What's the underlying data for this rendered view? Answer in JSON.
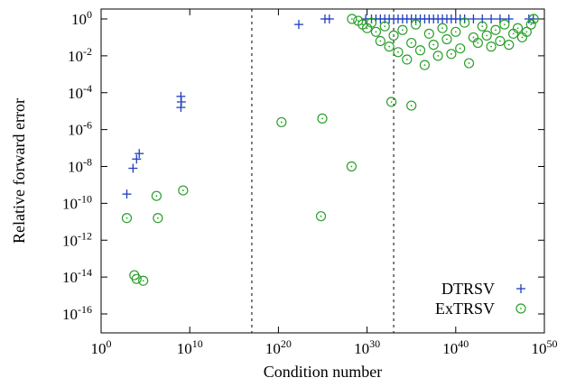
{
  "chart_data": {
    "type": "scatter",
    "xlabel": "Condition number",
    "ylabel": "Relative forward error",
    "xscale": "log",
    "yscale": "log",
    "xlim_exp": [
      0,
      50
    ],
    "ylim_exp": [
      -17,
      0.5
    ],
    "x_ticks": [
      {
        "exp": 0,
        "label": "10",
        "sup": "0"
      },
      {
        "exp": 10,
        "label": "10",
        "sup": "10"
      },
      {
        "exp": 20,
        "label": "10",
        "sup": "20"
      },
      {
        "exp": 30,
        "label": "10",
        "sup": "30"
      },
      {
        "exp": 40,
        "label": "10",
        "sup": "40"
      },
      {
        "exp": 50,
        "label": "10",
        "sup": "50"
      }
    ],
    "y_ticks": [
      {
        "exp": 0,
        "label": "10",
        "sup": "0"
      },
      {
        "exp": -2,
        "label": "10",
        "sup": "-2"
      },
      {
        "exp": -4,
        "label": "10",
        "sup": "-4"
      },
      {
        "exp": -6,
        "label": "10",
        "sup": "-6"
      },
      {
        "exp": -8,
        "label": "10",
        "sup": "-8"
      },
      {
        "exp": -10,
        "label": "10",
        "sup": "-10"
      },
      {
        "exp": -12,
        "label": "10",
        "sup": "-12"
      },
      {
        "exp": -14,
        "label": "10",
        "sup": "-14"
      },
      {
        "exp": -16,
        "label": "10",
        "sup": "-16"
      }
    ],
    "reference_lines_x_exp": [
      17,
      33
    ],
    "legend_position": "bottom-right",
    "series": [
      {
        "name": "DTRSV",
        "marker": "plus",
        "color": "#1f3fbf",
        "points_log10": [
          [
            5.8,
            -9.5
          ],
          [
            7.2,
            -8.1
          ],
          [
            8.0,
            -7.6
          ],
          [
            8.6,
            -7.3
          ],
          [
            18.0,
            -4.2
          ],
          [
            18.1,
            -4.5
          ],
          [
            18.0,
            -4.8
          ],
          [
            44.6,
            -0.3
          ],
          [
            50.5,
            0.0
          ],
          [
            51.5,
            0.0
          ],
          [
            59.7,
            0.0
          ],
          [
            61.0,
            0.0
          ],
          [
            62.0,
            0.0
          ],
          [
            63.0,
            0.0
          ],
          [
            64.0,
            0.0
          ],
          [
            65.0,
            0.0
          ],
          [
            66.0,
            0.0
          ],
          [
            67.0,
            0.0
          ],
          [
            68.0,
            0.0
          ],
          [
            69.0,
            0.0
          ],
          [
            70.0,
            0.0
          ],
          [
            71.0,
            0.0
          ],
          [
            72.0,
            0.0
          ],
          [
            73.0,
            0.0
          ],
          [
            74.0,
            0.0
          ],
          [
            75.0,
            0.0
          ],
          [
            76.0,
            0.0
          ],
          [
            77.0,
            0.0
          ],
          [
            78.0,
            0.0
          ],
          [
            79.0,
            0.0
          ],
          [
            80.0,
            0.0
          ],
          [
            81.0,
            0.0
          ],
          [
            82.0,
            0.0
          ],
          [
            84.0,
            0.0
          ],
          [
            86.0,
            0.0
          ],
          [
            88.0,
            0.0
          ],
          [
            90.0,
            0.0
          ],
          [
            92.0,
            0.0
          ],
          [
            96.5,
            0.0
          ],
          [
            97.5,
            0.0
          ]
        ]
      },
      {
        "name": "ExTRSV",
        "marker": "circle-dot",
        "color": "#2aa02a",
        "points_log10": [
          [
            5.8,
            -10.8
          ],
          [
            7.5,
            -13.9
          ],
          [
            8.0,
            -14.1
          ],
          [
            9.5,
            -14.2
          ],
          [
            12.5,
            -9.6
          ],
          [
            12.8,
            -10.8
          ],
          [
            18.5,
            -9.3
          ],
          [
            40.7,
            -5.6
          ],
          [
            49.6,
            -10.7
          ],
          [
            49.9,
            -5.4
          ],
          [
            56.5,
            -8.0
          ],
          [
            70.0,
            -4.7
          ],
          [
            65.5,
            -4.5
          ],
          [
            56.6,
            0.0
          ],
          [
            58.0,
            -0.1
          ],
          [
            59.0,
            -0.3
          ],
          [
            60.0,
            -0.5
          ],
          [
            61.0,
            -0.2
          ],
          [
            62.0,
            -0.7
          ],
          [
            63.0,
            -1.2
          ],
          [
            64.0,
            -0.4
          ],
          [
            65.0,
            -1.5
          ],
          [
            66.0,
            -0.9
          ],
          [
            67.0,
            -1.8
          ],
          [
            68.0,
            -0.6
          ],
          [
            69.0,
            -2.2
          ],
          [
            70.0,
            -1.3
          ],
          [
            71.0,
            -0.3
          ],
          [
            72.0,
            -1.7
          ],
          [
            73.0,
            -2.5
          ],
          [
            74.0,
            -0.8
          ],
          [
            75.0,
            -1.4
          ],
          [
            76.0,
            -2.0
          ],
          [
            77.0,
            -0.5
          ],
          [
            78.0,
            -1.1
          ],
          [
            79.0,
            -1.9
          ],
          [
            80.0,
            -0.7
          ],
          [
            81.0,
            -1.6
          ],
          [
            82.0,
            -0.2
          ],
          [
            83.0,
            -2.4
          ],
          [
            84.0,
            -1.0
          ],
          [
            85.0,
            -1.3
          ],
          [
            86.0,
            -0.4
          ],
          [
            87.0,
            -0.9
          ],
          [
            88.0,
            -1.5
          ],
          [
            89.0,
            -0.6
          ],
          [
            90.0,
            -1.2
          ],
          [
            91.0,
            -0.3
          ],
          [
            92.0,
            -1.4
          ],
          [
            93.0,
            -0.8
          ],
          [
            94.0,
            -0.5
          ],
          [
            95.0,
            -1.0
          ],
          [
            96.0,
            -0.7
          ],
          [
            97.0,
            -0.3
          ],
          [
            97.6,
            0.0
          ]
        ]
      }
    ]
  }
}
